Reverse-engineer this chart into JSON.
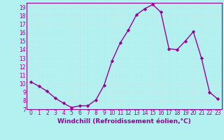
{
  "xlabel": "Windchill (Refroidissement éolien,°C)",
  "x": [
    0,
    1,
    2,
    3,
    4,
    5,
    6,
    7,
    8,
    9,
    10,
    11,
    12,
    13,
    14,
    15,
    16,
    17,
    18,
    19,
    20,
    21,
    22,
    23
  ],
  "y": [
    10.2,
    9.7,
    9.1,
    8.3,
    7.7,
    7.2,
    7.4,
    7.4,
    8.1,
    9.8,
    12.7,
    14.8,
    16.3,
    18.1,
    18.8,
    19.3,
    18.4,
    14.1,
    14.0,
    15.0,
    16.1,
    13.0,
    9.0,
    8.2
  ],
  "line_color": "#990099",
  "marker": "D",
  "marker_size": 2.2,
  "bg_color": "#b3f0f0",
  "grid_color": "#c0e8e8",
  "ylim": [
    7,
    19.5
  ],
  "xlim": [
    -0.5,
    23.5
  ],
  "yticks": [
    7,
    8,
    9,
    10,
    11,
    12,
    13,
    14,
    15,
    16,
    17,
    18,
    19
  ],
  "xticks": [
    0,
    1,
    2,
    3,
    4,
    5,
    6,
    7,
    8,
    9,
    10,
    11,
    12,
    13,
    14,
    15,
    16,
    17,
    18,
    19,
    20,
    21,
    22,
    23
  ],
  "tick_label_fontsize": 5.5,
  "xlabel_fontsize": 6.5,
  "line_width": 1.0
}
